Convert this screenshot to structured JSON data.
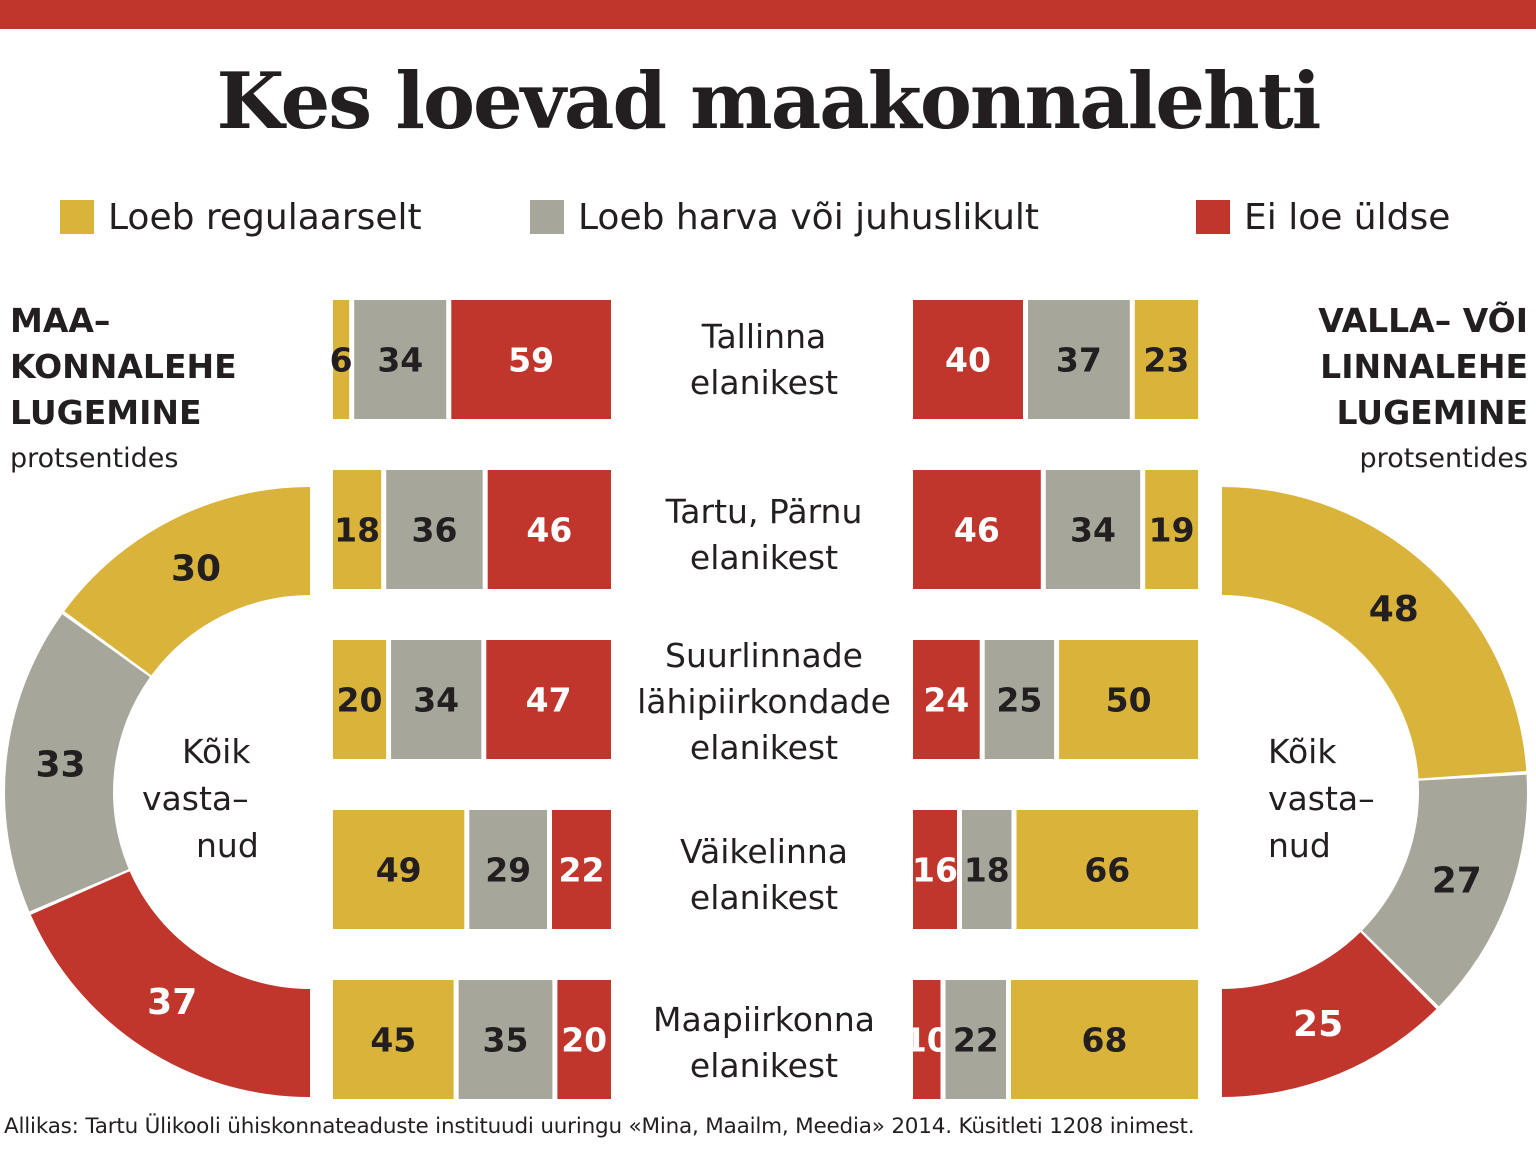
{
  "title": "Kes loevad maakonnalehti",
  "legend": [
    {
      "label": "Loeb regulaarselt",
      "color": "#d9b33a"
    },
    {
      "label": "Loeb harva või juhuslikult",
      "color": "#a7a69a"
    },
    {
      "label": "Ei loe üldse",
      "color": "#c0362c"
    }
  ],
  "left_panel": {
    "title_lines": [
      "MAA–",
      "KONNALEHE",
      "LUGEMINE"
    ],
    "subtitle": "protsentides"
  },
  "right_panel": {
    "title_lines": [
      "VALLA– VÕI",
      "LINNALEHE",
      "LUGEMINE"
    ],
    "subtitle": "protsentides"
  },
  "center_label_lines": [
    "Kõik",
    "vasta–",
    "nud"
  ],
  "source": "Allikas: Tartu Ülikooli ühiskonnateaduste instituudi uuringu «Mina, Maailm, Meedia» 2014. Küsitleti 1208 inimest.",
  "chart_data": [
    {
      "type": "bar",
      "orientation": "horizontal-stacked",
      "name": "MAA–KONNALEHE LUGEMINE",
      "categories": [
        [
          "Tallinna",
          "elanikest"
        ],
        [
          "Tartu, Pärnu",
          "elanikest"
        ],
        [
          "Suurlinnade",
          "lähipiirkondade",
          "elanikest"
        ],
        [
          "Väikelinna",
          "elanikest"
        ],
        [
          "Maapiirkonna",
          "elanikest"
        ]
      ],
      "series": [
        {
          "name": "Loeb regulaarselt",
          "values": [
            6,
            18,
            20,
            49,
            45
          ]
        },
        {
          "name": "Loeb harva või juhuslikult",
          "values": [
            34,
            36,
            34,
            29,
            35
          ]
        },
        {
          "name": "Ei loe üldse",
          "values": [
            59,
            46,
            47,
            22,
            20
          ]
        }
      ],
      "unit": "protsentides"
    },
    {
      "type": "bar",
      "orientation": "horizontal-stacked",
      "name": "VALLA– VÕI LINNALEHE LUGEMINE",
      "categories": [
        [
          "Tallinna",
          "elanikest"
        ],
        [
          "Tartu, Pärnu",
          "elanikest"
        ],
        [
          "Suurlinnade",
          "lähipiirkondade",
          "elanikest"
        ],
        [
          "Väikelinna",
          "elanikest"
        ],
        [
          "Maapiirkonna",
          "elanikest"
        ]
      ],
      "series": [
        {
          "name": "Ei loe üldse",
          "values": [
            40,
            46,
            24,
            16,
            10
          ]
        },
        {
          "name": "Loeb harva või juhuslikult",
          "values": [
            37,
            34,
            25,
            18,
            22
          ]
        },
        {
          "name": "Loeb regulaarselt",
          "values": [
            23,
            19,
            50,
            66,
            68
          ]
        }
      ],
      "unit": "protsentides"
    },
    {
      "type": "pie",
      "name": "Kõik vastanud — maakonnaleht",
      "labels": [
        "Loeb regulaarselt",
        "Loeb harva või juhuslikult",
        "Ei loe üldse"
      ],
      "values": [
        30,
        33,
        37
      ]
    },
    {
      "type": "pie",
      "name": "Kõik vastanud — valla- või linnaleht",
      "labels": [
        "Loeb regulaarselt",
        "Loeb harva või juhuslikult",
        "Ei loe üldse"
      ],
      "values": [
        48,
        27,
        25
      ]
    }
  ]
}
